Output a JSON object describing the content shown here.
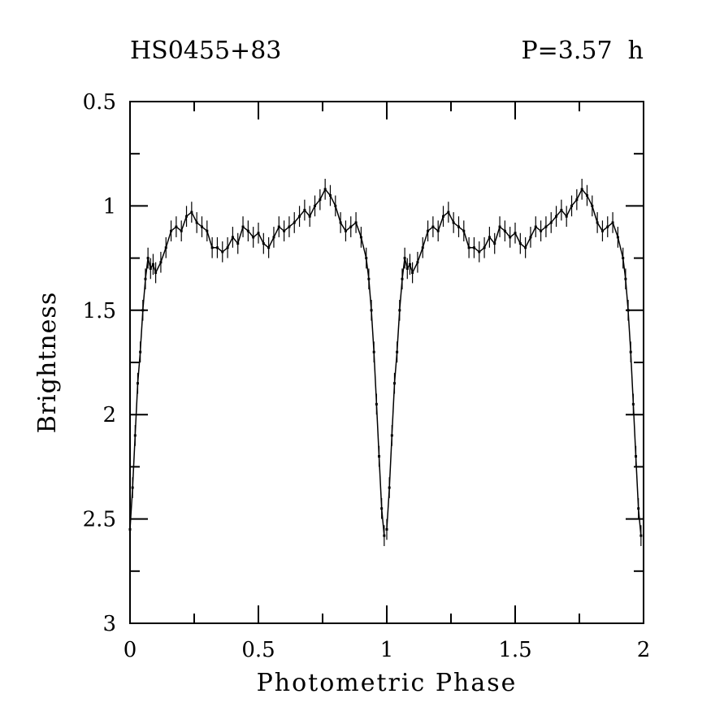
{
  "chart_data": {
    "type": "scatter",
    "title_left": "HS0455+83",
    "title_right": "P=3.57  h",
    "xlabel": "Photometric Phase",
    "ylabel": "Brightness",
    "xlim": [
      0,
      2
    ],
    "ylim": [
      3,
      0.5
    ],
    "y_inverted": true,
    "x_ticks": [
      "0",
      "0.5",
      "1",
      "1.5",
      "2"
    ],
    "x_tick_values": [
      0,
      0.5,
      1,
      1.5,
      2
    ],
    "y_ticks": [
      "0.5",
      "1",
      "1.5",
      "2",
      "2.5",
      "3"
    ],
    "y_tick_values": [
      0.5,
      1,
      1.5,
      2,
      2.5,
      3
    ],
    "grid": false,
    "phase_cycles_shown": 2,
    "error_bar": 0.05,
    "series": [
      {
        "name": "light curve",
        "x": [
          0.0,
          0.01,
          0.02,
          0.03,
          0.04,
          0.05,
          0.06,
          0.07,
          0.08,
          0.09,
          0.1,
          0.12,
          0.14,
          0.16,
          0.18,
          0.2,
          0.22,
          0.24,
          0.26,
          0.28,
          0.3,
          0.32,
          0.34,
          0.36,
          0.38,
          0.4,
          0.42,
          0.44,
          0.46,
          0.48,
          0.5,
          0.52,
          0.54,
          0.56,
          0.58,
          0.6,
          0.62,
          0.64,
          0.66,
          0.68,
          0.7,
          0.72,
          0.74,
          0.76,
          0.78,
          0.8,
          0.82,
          0.84,
          0.86,
          0.88,
          0.9,
          0.92,
          0.93,
          0.94,
          0.95,
          0.96,
          0.97,
          0.98,
          0.99
        ],
        "y": [
          2.55,
          2.35,
          2.1,
          1.85,
          1.7,
          1.5,
          1.35,
          1.25,
          1.3,
          1.28,
          1.32,
          1.27,
          1.2,
          1.12,
          1.1,
          1.12,
          1.05,
          1.03,
          1.08,
          1.1,
          1.12,
          1.2,
          1.2,
          1.22,
          1.2,
          1.15,
          1.18,
          1.1,
          1.12,
          1.15,
          1.13,
          1.18,
          1.2,
          1.15,
          1.1,
          1.12,
          1.1,
          1.08,
          1.05,
          1.02,
          1.05,
          1.0,
          0.97,
          0.92,
          0.95,
          1.0,
          1.08,
          1.12,
          1.1,
          1.08,
          1.15,
          1.25,
          1.35,
          1.5,
          1.7,
          1.95,
          2.2,
          2.45,
          2.58
        ]
      }
    ]
  }
}
